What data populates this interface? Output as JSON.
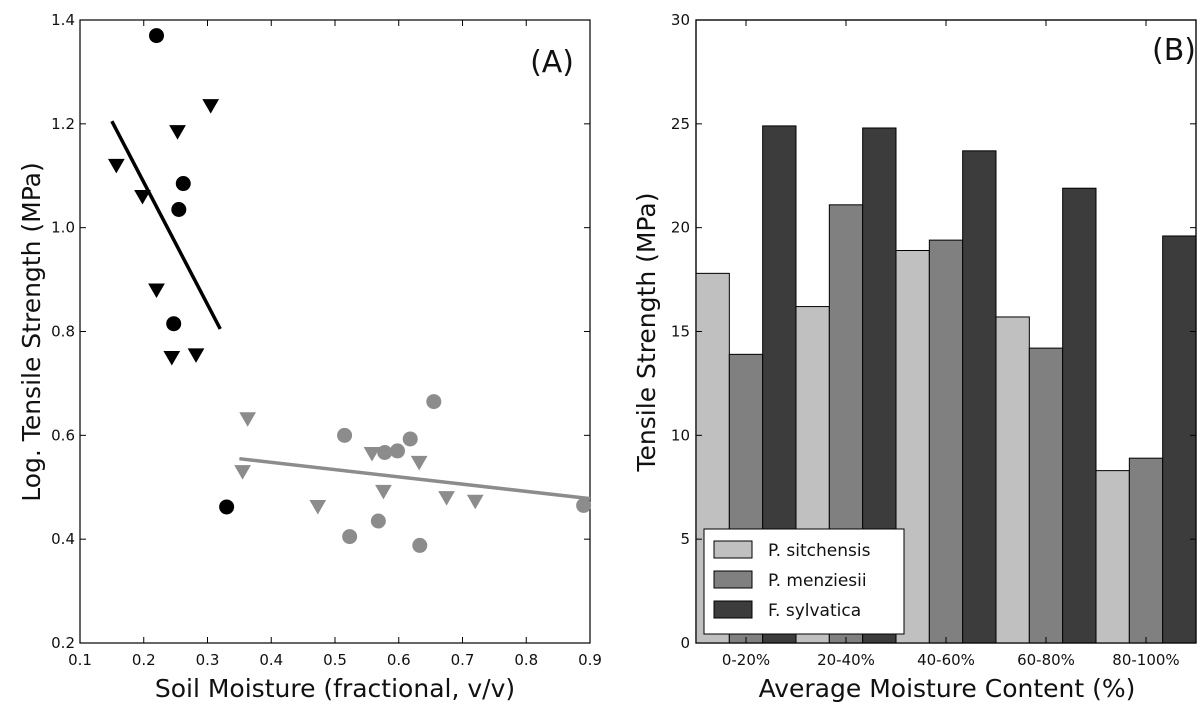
{
  "chart_data": [
    {
      "type": "scatter",
      "panel_label": "(A)",
      "xlabel": "Soil Moisture (fractional, v/v)",
      "ylabel": "Log. Tensile Strength (MPa)",
      "xlim": [
        0.1,
        0.9
      ],
      "ylim": [
        0.2,
        1.4
      ],
      "xticks": [
        "0.1",
        "0.2",
        "0.3",
        "0.4",
        "0.5",
        "0.6",
        "0.7",
        "0.8",
        "0.9"
      ],
      "yticks": [
        "0.2",
        "0.4",
        "0.6",
        "0.8",
        "1.0",
        "1.2",
        "1.4"
      ],
      "grid": false,
      "colors": {
        "black": "#000000",
        "gray": "#8c8c8c"
      },
      "series": [
        {
          "marker": "circle",
          "color": "black",
          "points": [
            [
              0.22,
              1.37
            ],
            [
              0.262,
              1.085
            ],
            [
              0.255,
              1.035
            ],
            [
              0.247,
              0.815
            ],
            [
              0.33,
              0.462
            ]
          ]
        },
        {
          "marker": "triangle-down",
          "color": "black",
          "points": [
            [
              0.157,
              1.12
            ],
            [
              0.198,
              1.06
            ],
            [
              0.253,
              1.185
            ],
            [
              0.305,
              1.235
            ],
            [
              0.22,
              0.88
            ],
            [
              0.244,
              0.75
            ],
            [
              0.282,
              0.755
            ]
          ]
        },
        {
          "marker": "circle",
          "color": "gray",
          "points": [
            [
              0.515,
              0.6
            ],
            [
              0.523,
              0.405
            ],
            [
              0.568,
              0.435
            ],
            [
              0.578,
              0.567
            ],
            [
              0.598,
              0.57
            ],
            [
              0.618,
              0.593
            ],
            [
              0.633,
              0.388
            ],
            [
              0.655,
              0.665
            ],
            [
              0.89,
              0.465
            ]
          ]
        },
        {
          "marker": "triangle-down",
          "color": "gray",
          "points": [
            [
              0.355,
              0.53
            ],
            [
              0.363,
              0.632
            ],
            [
              0.473,
              0.463
            ],
            [
              0.558,
              0.565
            ],
            [
              0.576,
              0.492
            ],
            [
              0.632,
              0.548
            ],
            [
              0.675,
              0.48
            ],
            [
              0.72,
              0.473
            ]
          ]
        }
      ],
      "fit_lines": [
        {
          "color": "black",
          "x": [
            0.15,
            0.32
          ],
          "y": [
            1.205,
            0.805
          ]
        },
        {
          "color": "gray",
          "x": [
            0.35,
            0.9
          ],
          "y": [
            0.555,
            0.478
          ]
        }
      ]
    },
    {
      "type": "bar",
      "panel_label": "(B)",
      "xlabel": "Average Moisture Content (%)",
      "ylabel": "Tensile Strength (MPa)",
      "ylim": [
        0,
        30
      ],
      "yticks": [
        "0",
        "5",
        "10",
        "15",
        "20",
        "25",
        "30"
      ],
      "categories": [
        "0-20%",
        "20-40%",
        "40-60%",
        "60-80%",
        "80-100%"
      ],
      "legend_position": "bottom-left",
      "series": [
        {
          "name": "P. sitchensis",
          "color": "#c0c0c0",
          "values": [
            17.8,
            16.2,
            18.9,
            15.7,
            8.3
          ]
        },
        {
          "name": "P. menziesii",
          "color": "#808080",
          "values": [
            13.9,
            21.1,
            19.4,
            14.2,
            8.9
          ]
        },
        {
          "name": "F. sylvatica",
          "color": "#3c3c3c",
          "values": [
            24.9,
            24.8,
            23.7,
            21.9,
            19.6
          ]
        }
      ]
    }
  ]
}
